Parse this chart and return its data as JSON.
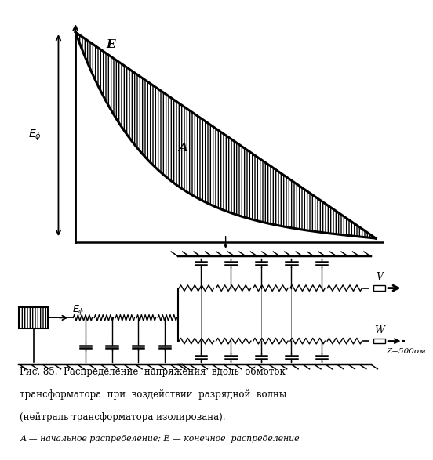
{
  "bg_color": "#ffffff",
  "fig_width": 5.06,
  "fig_height": 5.79,
  "caption_line1": "Рис. 85.  Распределение  напряжения  вдоль  обмоток",
  "caption_line2": "трансформатора  при  воздействии  разрядной  волны",
  "caption_line3": "(нейтраль трансформатора изолирована).",
  "caption_line4": "А — начальное распределение; Е — конечное  распределение",
  "label_E": "E",
  "label_A": "A",
  "label_Ephi_top": "$E_{\\phi}$",
  "label_Ephi_circ": "$E_{\\phi}$",
  "label_V": "V",
  "label_W": "W",
  "label_Z": "Z=500ом"
}
